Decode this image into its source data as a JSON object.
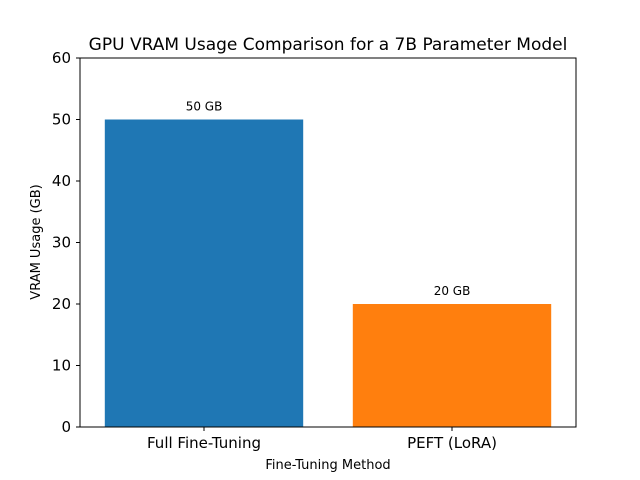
{
  "chart_data": {
    "type": "bar",
    "title": "GPU VRAM Usage Comparison for a 7B Parameter Model",
    "xlabel": "Fine-Tuning Method",
    "ylabel": "VRAM Usage (GB)",
    "categories": [
      "Full Fine-Tuning",
      "PEFT (LoRA)"
    ],
    "values": [
      50,
      20
    ],
    "data_labels": [
      "50 GB",
      "20 GB"
    ],
    "colors": [
      "#1f77b4",
      "#ff7f0e"
    ],
    "ylim": [
      0,
      60
    ],
    "yticks": [
      0,
      10,
      20,
      30,
      40,
      50,
      60
    ],
    "grid": false,
    "legend": "none"
  }
}
